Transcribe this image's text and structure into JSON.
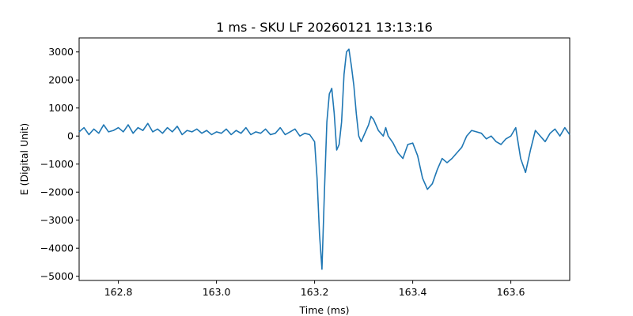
{
  "chart_data": {
    "type": "line",
    "title": "1 ms - SKU LF 20260121 13:13:16",
    "xlabel": "Time (ms)",
    "ylabel": "E (Digital Unit)",
    "xlim": [
      162.72,
      163.72
    ],
    "ylim": [
      -5150,
      3500
    ],
    "xticks": [
      162.8,
      163.0,
      163.2,
      163.4,
      163.6
    ],
    "xtick_labels": [
      "162.8",
      "163.0",
      "163.2",
      "163.4",
      "163.6"
    ],
    "yticks": [
      -5000,
      -4000,
      -3000,
      -2000,
      -1000,
      0,
      1000,
      2000,
      3000
    ],
    "ytick_labels": [
      "−5000",
      "−4000",
      "−3000",
      "−2000",
      "−1000",
      "0",
      "1000",
      "2000",
      "3000"
    ],
    "grid": false,
    "line_color": "#1f77b4",
    "series": [
      {
        "x": [
          162.72,
          162.73,
          162.74,
          162.75,
          162.76,
          162.77,
          162.78,
          162.79,
          162.8,
          162.81,
          162.82,
          162.83,
          162.84,
          162.85,
          162.86,
          162.87,
          162.88,
          162.89,
          162.9,
          162.91,
          162.92,
          162.93,
          162.94,
          162.95,
          162.96,
          162.97,
          162.98,
          162.99,
          163.0,
          163.01,
          163.02,
          163.03,
          163.04,
          163.05,
          163.06,
          163.07,
          163.08,
          163.09,
          163.1,
          163.11,
          163.12,
          163.13,
          163.14,
          163.15,
          163.16,
          163.17,
          163.18,
          163.19,
          163.2,
          163.205,
          163.21,
          163.215,
          163.22,
          163.225,
          163.23,
          163.235,
          163.24,
          163.245,
          163.25,
          163.255,
          163.26,
          163.265,
          163.27,
          163.275,
          163.28,
          163.285,
          163.29,
          163.295,
          163.3,
          163.305,
          163.31,
          163.315,
          163.32,
          163.325,
          163.33,
          163.335,
          163.34,
          163.345,
          163.35,
          163.36,
          163.37,
          163.38,
          163.39,
          163.4,
          163.41,
          163.42,
          163.43,
          163.44,
          163.45,
          163.46,
          163.47,
          163.48,
          163.49,
          163.5,
          163.51,
          163.52,
          163.53,
          163.54,
          163.55,
          163.56,
          163.57,
          163.58,
          163.59,
          163.6,
          163.61,
          163.62,
          163.63,
          163.64,
          163.65,
          163.66,
          163.67,
          163.68,
          163.69,
          163.7,
          163.71,
          163.72
        ],
        "y": [
          150,
          300,
          50,
          250,
          100,
          400,
          150,
          200,
          300,
          150,
          400,
          100,
          300,
          200,
          450,
          150,
          250,
          100,
          300,
          150,
          350,
          50,
          200,
          150,
          250,
          100,
          200,
          50,
          150,
          100,
          250,
          50,
          200,
          100,
          300,
          50,
          150,
          100,
          250,
          50,
          100,
          300,
          50,
          150,
          250,
          0,
          100,
          50,
          -200,
          -1500,
          -3500,
          -4750,
          -2000,
          500,
          1500,
          1700,
          800,
          -500,
          -300,
          500,
          2200,
          3000,
          3100,
          2500,
          1800,
          800,
          0,
          -200,
          0,
          200,
          400,
          700,
          600,
          400,
          200,
          100,
          0,
          300,
          0,
          -250,
          -600,
          -800,
          -300,
          -250,
          -700,
          -1500,
          -1900,
          -1700,
          -1200,
          -800,
          -950,
          -800,
          -600,
          -400,
          0,
          200,
          150,
          100,
          -100,
          0,
          -200,
          -300,
          -100,
          0,
          300,
          -800,
          -1300,
          -500,
          200,
          0,
          -200,
          100,
          250,
          0,
          300,
          50
        ]
      }
    ]
  }
}
